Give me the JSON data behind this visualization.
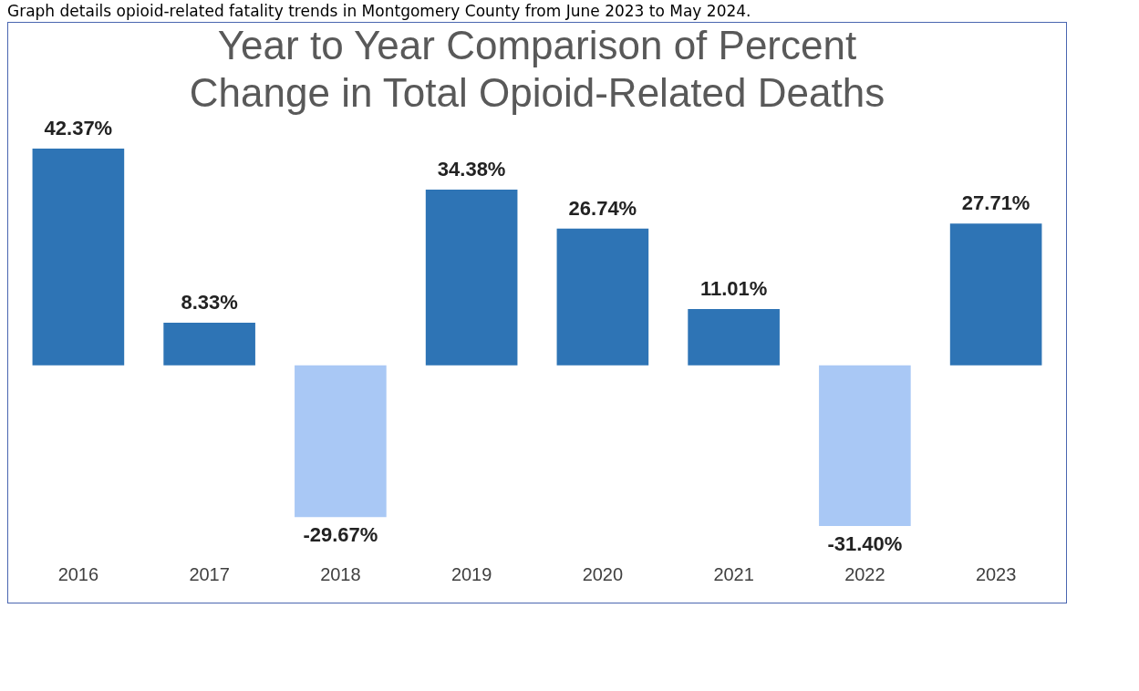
{
  "chart_data": {
    "type": "bar",
    "title": "Year to Year Comparison of Percent Change in Total Opioid-Related Deaths",
    "annotations": [
      "Graph details opioid-related fatality trends in Montgomery County from June 2023 to May 2024."
    ],
    "categories": [
      "2016",
      "2017",
      "2018",
      "2019",
      "2020",
      "2021",
      "2022",
      "2023"
    ],
    "values": [
      42.37,
      8.33,
      -29.67,
      34.38,
      26.74,
      11.01,
      -31.4,
      27.71
    ],
    "value_labels": [
      "42.37%",
      "8.33%",
      "-29.67%",
      "34.38%",
      "26.74%",
      "11.01%",
      "-31.40%",
      "27.71%"
    ],
    "colors": [
      "#2e74b5",
      "#2e74b5",
      "#a9c8f5",
      "#2e74b5",
      "#2e74b5",
      "#2e74b5",
      "#a9c8f5",
      "#2e74b5"
    ],
    "grid": false,
    "legend": false
  }
}
